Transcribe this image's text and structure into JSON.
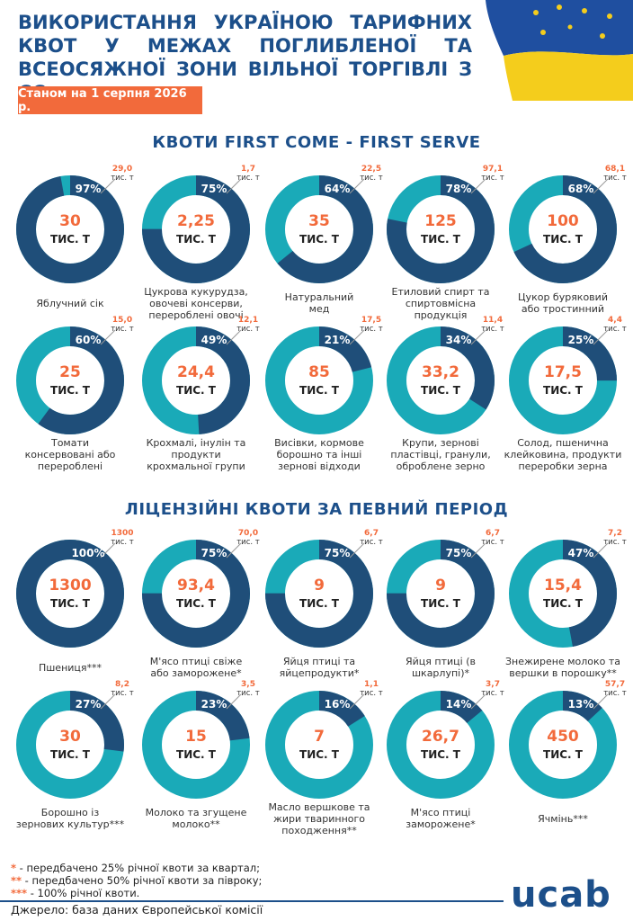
{
  "title": "ВИКОРИСТАННЯ УКРАЇНОЮ ТАРИФНИХ КВОТ У МЕЖАХ ПОГЛИБЛЕНОЇ ТА ВСЕОСЯЖНОЇ ЗОНИ ВІЛЬНОЇ ТОРГІВЛІ З ЄС",
  "date": "Станом на 1 серпня 2026 р.",
  "sections": [
    "КВОТИ FIRST COME - FIRST SERVE",
    "ЛІЦЕНЗІЙНІ КВОТИ ЗА ПЕВНИЙ ПЕРІОД"
  ],
  "units": {
    "quota": "ТИС. Т",
    "used": "тис. т"
  },
  "colors": {
    "used": "#1f4e79",
    "remaining": "#1aaab8"
  },
  "chart_data": [
    {
      "type": "donut",
      "title": "Яблучний сік",
      "values": [
        97
      ],
      "value_labels": [
        "97%"
      ],
      "quota": 30,
      "used": {
        "value": 29.0,
        "label": "29,0"
      }
    },
    {
      "type": "donut",
      "title": "Цукрова кукурудза,\nовочеві консерви,\nперероблені овочі",
      "values": [
        75
      ],
      "value_labels": [
        "75%"
      ],
      "quota": {
        "value": 2.25,
        "label": "2,25"
      },
      "used": {
        "value": 1.7,
        "label": "1,7"
      }
    },
    {
      "type": "donut",
      "title": "Натуральний\nмед",
      "values": [
        64
      ],
      "value_labels": [
        "64%"
      ],
      "quota": 35,
      "used": {
        "value": 22.5,
        "label": "22,5"
      }
    },
    {
      "type": "donut",
      "title": "Етиловий спирт та\nспиртовмісна\nпродукція",
      "values": [
        78
      ],
      "value_labels": [
        "78%"
      ],
      "quota": 125,
      "used": {
        "value": 97.1,
        "label": "97,1"
      }
    },
    {
      "type": "donut",
      "title": "Цукор буряковий\nабо тростинний",
      "values": [
        68
      ],
      "value_labels": [
        "68%"
      ],
      "quota": 100,
      "used": {
        "value": 68.1,
        "label": "68,1"
      }
    },
    {
      "type": "donut",
      "title": "Томати\nконсервовані або\nперероблені",
      "values": [
        60
      ],
      "value_labels": [
        "60%"
      ],
      "quota": 25,
      "used": {
        "value": 15.0,
        "label": "15,0"
      }
    },
    {
      "type": "donut",
      "title": "Крохмалі, інулін та\nпродукти\nкрохмальної групи",
      "values": [
        49
      ],
      "value_labels": [
        "49%"
      ],
      "quota": {
        "value": 24.4,
        "label": "24,4"
      },
      "used": {
        "value": 12.1,
        "label": "12,1"
      }
    },
    {
      "type": "donut",
      "title": "Висівки, кормове\nборошно та інші\nзернові відходи",
      "values": [
        21
      ],
      "value_labels": [
        "21%"
      ],
      "quota": 85,
      "used": {
        "value": 17.5,
        "label": "17,5"
      }
    },
    {
      "type": "donut",
      "title": "Крупи, зернові\nпластівці, гранули,\nоброблене зерно",
      "values": [
        34
      ],
      "value_labels": [
        "34%"
      ],
      "quota": {
        "value": 33.2,
        "label": "33,2"
      },
      "used": {
        "value": 11.4,
        "label": "11,4"
      }
    },
    {
      "type": "donut",
      "title": "Солод, пшенична\nклейковина, продукти\nпереробки зерна",
      "values": [
        25
      ],
      "value_labels": [
        "25%"
      ],
      "quota": {
        "value": 17.5,
        "label": "17,5"
      },
      "used": {
        "value": 4.4,
        "label": "4,4"
      }
    },
    {
      "type": "donut",
      "title": "Пшениця***",
      "values": [
        100
      ],
      "value_labels": [
        "100%"
      ],
      "quota": 1300,
      "used": 1300
    },
    {
      "type": "donut",
      "title": "М'ясо птиці свіже\nабо заморожене*",
      "values": [
        75
      ],
      "value_labels": [
        "75%"
      ],
      "quota": {
        "value": 93.4,
        "label": "93,4"
      },
      "used": {
        "value": 70.0,
        "label": "70,0"
      }
    },
    {
      "type": "donut",
      "title": "Яйця птиці та\nяйцепродукти*",
      "values": [
        75
      ],
      "value_labels": [
        "75%"
      ],
      "quota": 9,
      "used": {
        "value": 6.7,
        "label": "6,7"
      }
    },
    {
      "type": "donut",
      "title": "Яйця птиці (в\nшкарлупі)*",
      "values": [
        75
      ],
      "value_labels": [
        "75%"
      ],
      "quota": 9,
      "used": {
        "value": 6.7,
        "label": "6,7"
      }
    },
    {
      "type": "donut",
      "title": "Знежирене молоко та\nвершки в порошку**",
      "values": [
        47
      ],
      "value_labels": [
        "47%"
      ],
      "quota": {
        "value": 15.4,
        "label": "15,4"
      },
      "used": {
        "value": 7.2,
        "label": "7,2"
      }
    },
    {
      "type": "donut",
      "title": "Борошно із\nзернових культур***",
      "values": [
        27
      ],
      "value_labels": [
        "27%"
      ],
      "quota": 30,
      "used": {
        "value": 8.2,
        "label": "8,2"
      }
    },
    {
      "type": "donut",
      "title": "Молоко та згущене\nмолоко**",
      "values": [
        23
      ],
      "value_labels": [
        "23%"
      ],
      "quota": 15,
      "used": {
        "value": 3.5,
        "label": "3,5"
      }
    },
    {
      "type": "donut",
      "title": "Масло вершкове та\nжири тваринного\nпоходження**",
      "values": [
        16
      ],
      "value_labels": [
        "16%"
      ],
      "quota": 7,
      "used": {
        "value": 1.1,
        "label": "1,1"
      }
    },
    {
      "type": "donut",
      "title": "М'ясо птиці\nзаморожене*",
      "values": [
        14
      ],
      "value_labels": [
        "14%"
      ],
      "quota": {
        "value": 26.7,
        "label": "26,7"
      },
      "used": {
        "value": 3.7,
        "label": "3,7"
      }
    },
    {
      "type": "donut",
      "title": "Ячмінь***",
      "values": [
        13
      ],
      "value_labels": [
        "13%"
      ],
      "quota": 450,
      "used": {
        "value": 57.7,
        "label": "57,7"
      }
    }
  ],
  "notes": [
    {
      "mark": "*",
      "text": " - передбачено 25% річної квоти за квартал;"
    },
    {
      "mark": "**",
      "text": " - передбачено 50% річної квоти за півроку;"
    },
    {
      "mark": "***",
      "text": " - 100% річної квоти."
    }
  ],
  "source": "Джерело: база даних Європейської комісії",
  "logo": "ucab"
}
